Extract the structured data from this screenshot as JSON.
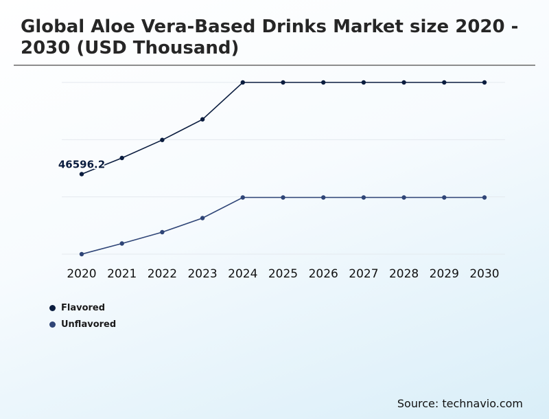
{
  "title": "Global Aloe Vera-Based Drinks Market size 2020 - 2030 (USD Thousand)",
  "source": "Source: technavio.com",
  "colors": {
    "flavored": "#0b1d3f",
    "unflavored": "#2f4577",
    "gridline": "#e4e9ee",
    "axis_text": "#111111"
  },
  "chart_data": {
    "type": "line",
    "title": "Global Aloe Vera-Based Drinks Market size 2020 - 2030 (USD Thousand)",
    "xlabel": "",
    "ylabel": "",
    "x": [
      "2020",
      "2021",
      "2022",
      "2023",
      "2024",
      "2025",
      "2026",
      "2027",
      "2028",
      "2029",
      "2030"
    ],
    "ylim": [
      0,
      100000
    ],
    "grid": true,
    "legend_position": "bottom-left",
    "series": [
      {
        "name": "Flavored",
        "values": [
          46596.2,
          56000,
          66500,
          78500,
          100000,
          100000,
          100000,
          100000,
          100000,
          100000,
          100000
        ]
      },
      {
        "name": "Unflavored",
        "values": [
          0,
          6200,
          12800,
          21000,
          33000,
          33000,
          33000,
          33000,
          33000,
          33000,
          33000
        ]
      }
    ],
    "annotations": [
      {
        "series": "Flavored",
        "x": "2020",
        "text": "46596.2"
      }
    ]
  }
}
